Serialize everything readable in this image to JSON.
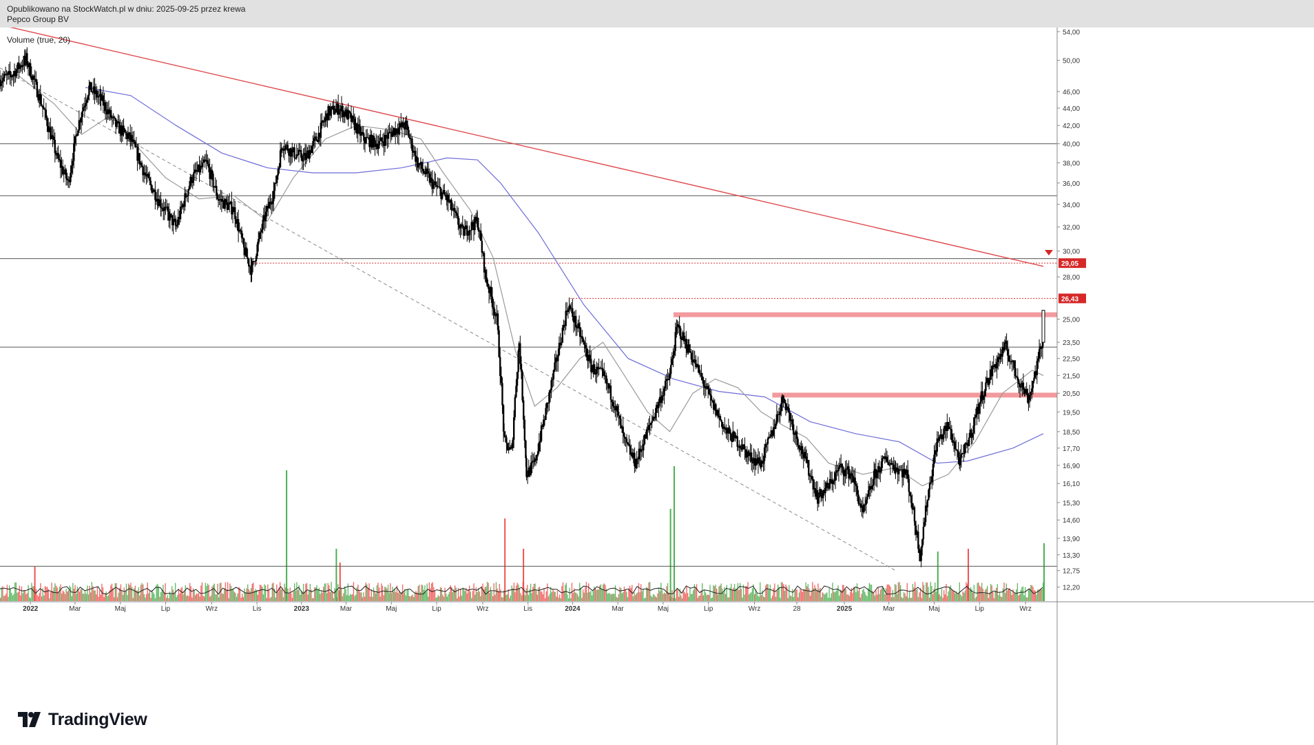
{
  "header": {
    "published": "Opublikowano na StockWatch.pl w dniu: 2025-09-25 przez krewa",
    "instrument": "Pepco Group BV"
  },
  "indicator_label": "Volume (true, 20)",
  "logo": {
    "text": "TradingView",
    "icon": "tradingview-logo-icon"
  },
  "colors": {
    "candle": "#000000",
    "trendline_red": "#e0484c",
    "zone": "#f29a9e",
    "ma_long": "#6b6bd9",
    "ma_short": "#9a9a9a",
    "vol_up": "#4caf50",
    "vol_down": "#ef5350",
    "price_label": "#d62828"
  },
  "chart_data": {
    "type": "line",
    "title": "",
    "x_ticks": [
      "2022",
      "Mar",
      "Maj",
      "Lip",
      "Wrz",
      "Lis",
      "2023",
      "Mar",
      "Maj",
      "Lip",
      "Wrz",
      "Lis",
      "2024",
      "Mar",
      "Maj",
      "Lip",
      "Wrz",
      "28",
      "2025",
      "Mar",
      "Maj",
      "Lip",
      "Wrz"
    ],
    "y_ticks": [
      "54,00",
      "50,00",
      "46,00",
      "44,00",
      "42,00",
      "40,00",
      "38,00",
      "36,00",
      "34,00",
      "32,00",
      "30,00",
      "28,00",
      "25,00",
      "23,50",
      "22,50",
      "21,50",
      "20,50",
      "19,50",
      "18,50",
      "17,70",
      "16,90",
      "16,10",
      "15,30",
      "14,60",
      "13,90",
      "13,30",
      "12,75",
      "12,20"
    ],
    "price_labels": [
      {
        "text": "29,05",
        "value": 29.05
      },
      {
        "text": "26,43",
        "value": 26.43
      }
    ],
    "y_scale": "log",
    "x_range": [
      "2021-11-20",
      "2025-09-25"
    ],
    "y_range": [
      11.75,
      55.0
    ],
    "horizontal_levels": [
      40.0,
      34.8,
      29.4,
      23.2,
      12.9
    ],
    "resistance_zones": [
      {
        "from": "2024-05-15",
        "to": "2025-09-25",
        "value": 25.3
      },
      {
        "from": "2024-09-25",
        "to": "2025-09-25",
        "value": 20.4
      }
    ],
    "downtrend_line": {
      "from": {
        "date": "2021-11-20",
        "value": 55.0
      },
      "to": {
        "date": "2025-09-25",
        "value": 28.8
      }
    },
    "dashed_trendline": {
      "from": {
        "date": "2021-11-20",
        "value": 49.0
      },
      "to": {
        "date": "2025-03-10",
        "value": 12.75
      }
    },
    "series": [
      {
        "kind": "close",
        "points": [
          [
            "2021-11-20",
            47.5
          ],
          [
            "2021-12-05",
            48.0
          ],
          [
            "2021-12-25",
            50.2
          ],
          [
            "2022-01-15",
            44.5
          ],
          [
            "2022-02-05",
            38.5
          ],
          [
            "2022-02-20",
            36.0
          ],
          [
            "2022-03-05",
            42.0
          ],
          [
            "2022-03-20",
            46.5
          ],
          [
            "2022-04-05",
            45.0
          ],
          [
            "2022-04-25",
            42.0
          ],
          [
            "2022-05-15",
            40.5
          ],
          [
            "2022-06-05",
            36.5
          ],
          [
            "2022-06-25",
            34.0
          ],
          [
            "2022-07-15",
            32.0
          ],
          [
            "2022-08-05",
            36.5
          ],
          [
            "2022-08-25",
            38.0
          ],
          [
            "2022-09-10",
            34.5
          ],
          [
            "2022-10-01",
            33.5
          ],
          [
            "2022-10-15",
            30.0
          ],
          [
            "2022-10-25",
            28.5
          ],
          [
            "2022-11-10",
            32.5
          ],
          [
            "2022-11-25",
            35.5
          ],
          [
            "2022-12-05",
            40.0
          ],
          [
            "2022-12-20",
            39.0
          ],
          [
            "2023-01-05",
            38.5
          ],
          [
            "2023-01-20",
            40.5
          ],
          [
            "2023-02-05",
            43.5
          ],
          [
            "2023-02-20",
            44.0
          ],
          [
            "2023-03-05",
            43.0
          ],
          [
            "2023-03-25",
            40.5
          ],
          [
            "2023-04-15",
            40.0
          ],
          [
            "2023-05-05",
            41.5
          ],
          [
            "2023-05-20",
            42.0
          ],
          [
            "2023-06-05",
            38.0
          ],
          [
            "2023-06-25",
            36.0
          ],
          [
            "2023-07-15",
            34.5
          ],
          [
            "2023-08-05",
            31.5
          ],
          [
            "2023-08-25",
            32.5
          ],
          [
            "2023-09-05",
            28.0
          ],
          [
            "2023-09-20",
            25.0
          ],
          [
            "2023-09-30",
            18.0
          ],
          [
            "2023-10-10",
            17.5
          ],
          [
            "2023-10-20",
            23.5
          ],
          [
            "2023-10-30",
            16.5
          ],
          [
            "2023-11-10",
            17.0
          ],
          [
            "2023-11-25",
            19.5
          ],
          [
            "2023-12-10",
            22.5
          ],
          [
            "2023-12-25",
            26.0
          ],
          [
            "2024-01-10",
            24.0
          ],
          [
            "2024-01-25",
            22.0
          ],
          [
            "2024-02-10",
            21.5
          ],
          [
            "2024-02-25",
            20.0
          ],
          [
            "2024-03-10",
            18.0
          ],
          [
            "2024-03-25",
            17.0
          ],
          [
            "2024-04-10",
            18.5
          ],
          [
            "2024-04-25",
            20.0
          ],
          [
            "2024-05-10",
            21.5
          ],
          [
            "2024-05-20",
            24.5
          ],
          [
            "2024-06-05",
            23.0
          ],
          [
            "2024-06-20",
            21.5
          ],
          [
            "2024-07-05",
            20.0
          ],
          [
            "2024-07-25",
            18.5
          ],
          [
            "2024-08-10",
            18.0
          ],
          [
            "2024-08-25",
            17.3
          ],
          [
            "2024-09-10",
            17.0
          ],
          [
            "2024-09-25",
            18.5
          ],
          [
            "2024-10-10",
            20.3
          ],
          [
            "2024-10-25",
            18.5
          ],
          [
            "2024-11-10",
            17.0
          ],
          [
            "2024-11-25",
            15.5
          ],
          [
            "2024-12-10",
            16.0
          ],
          [
            "2024-12-25",
            16.8
          ],
          [
            "2025-01-10",
            16.5
          ],
          [
            "2025-01-25",
            14.8
          ],
          [
            "2025-02-10",
            16.5
          ],
          [
            "2025-02-25",
            17.2
          ],
          [
            "2025-03-10",
            16.8
          ],
          [
            "2025-03-25",
            16.5
          ],
          [
            "2025-04-05",
            14.5
          ],
          [
            "2025-04-12",
            13.3
          ],
          [
            "2025-04-22",
            15.5
          ],
          [
            "2025-05-05",
            18.0
          ],
          [
            "2025-05-20",
            18.8
          ],
          [
            "2025-06-05",
            17.0
          ],
          [
            "2025-06-20",
            18.5
          ],
          [
            "2025-07-05",
            20.5
          ],
          [
            "2025-07-20",
            22.0
          ],
          [
            "2025-08-05",
            23.2
          ],
          [
            "2025-08-20",
            21.5
          ],
          [
            "2025-09-05",
            20.2
          ],
          [
            "2025-09-15",
            21.8
          ],
          [
            "2025-09-25",
            23.8
          ]
        ]
      },
      {
        "kind": "moving-average-long",
        "points": [
          [
            "2022-03-15",
            46.5
          ],
          [
            "2022-05-15",
            45.5
          ],
          [
            "2022-07-15",
            42.0
          ],
          [
            "2022-09-15",
            39.0
          ],
          [
            "2022-11-15",
            37.5
          ],
          [
            "2023-01-15",
            37.0
          ],
          [
            "2023-03-15",
            37.0
          ],
          [
            "2023-05-15",
            37.5
          ],
          [
            "2023-07-15",
            38.5
          ],
          [
            "2023-08-25",
            38.3
          ],
          [
            "2023-09-25",
            36.0
          ],
          [
            "2023-11-15",
            31.5
          ],
          [
            "2024-01-15",
            26.0
          ],
          [
            "2024-03-15",
            22.5
          ],
          [
            "2024-05-15",
            21.3
          ],
          [
            "2024-07-15",
            20.6
          ],
          [
            "2024-09-15",
            20.3
          ],
          [
            "2024-11-15",
            19.0
          ],
          [
            "2025-01-15",
            18.4
          ],
          [
            "2025-03-15",
            18.0
          ],
          [
            "2025-05-05",
            17.0
          ],
          [
            "2025-06-15",
            17.1
          ],
          [
            "2025-08-15",
            17.7
          ],
          [
            "2025-09-25",
            18.4
          ]
        ]
      },
      {
        "kind": "moving-average-short",
        "points": [
          [
            "2021-12-15",
            48.0
          ],
          [
            "2022-02-01",
            44.5
          ],
          [
            "2022-03-10",
            41.0
          ],
          [
            "2022-04-15",
            43.0
          ],
          [
            "2022-05-20",
            40.0
          ],
          [
            "2022-07-01",
            36.5
          ],
          [
            "2022-08-15",
            34.5
          ],
          [
            "2022-10-01",
            34.8
          ],
          [
            "2022-11-15",
            32.5
          ],
          [
            "2022-12-20",
            36.5
          ],
          [
            "2023-02-01",
            40.5
          ],
          [
            "2023-03-15",
            42.0
          ],
          [
            "2023-05-01",
            41.5
          ],
          [
            "2023-06-10",
            40.5
          ],
          [
            "2023-07-10",
            37.0
          ],
          [
            "2023-08-15",
            33.5
          ],
          [
            "2023-09-15",
            29.5
          ],
          [
            "2023-10-15",
            23.0
          ],
          [
            "2023-11-10",
            19.8
          ],
          [
            "2023-12-10",
            20.8
          ],
          [
            "2024-01-10",
            22.5
          ],
          [
            "2024-02-10",
            23.5
          ],
          [
            "2024-03-10",
            21.5
          ],
          [
            "2024-04-10",
            19.5
          ],
          [
            "2024-05-10",
            18.5
          ],
          [
            "2024-06-10",
            20.5
          ],
          [
            "2024-07-10",
            21.3
          ],
          [
            "2024-08-10",
            20.8
          ],
          [
            "2024-09-10",
            19.5
          ],
          [
            "2024-10-10",
            18.8
          ],
          [
            "2024-11-10",
            18.2
          ],
          [
            "2024-12-10",
            17.0
          ],
          [
            "2025-01-25",
            16.5
          ],
          [
            "2025-03-10",
            16.8
          ],
          [
            "2025-04-15",
            16.0
          ],
          [
            "2025-05-20",
            16.5
          ],
          [
            "2025-06-25",
            18.0
          ],
          [
            "2025-08-01",
            20.5
          ],
          [
            "2025-09-10",
            21.8
          ],
          [
            "2025-09-25",
            21.5
          ]
        ]
      }
    ],
    "volume": {
      "spikes": [
        {
          "date": "2022-01-05",
          "value": 0.25,
          "up": false
        },
        {
          "date": "2022-12-10",
          "value": 0.95,
          "up": true
        },
        {
          "date": "2023-02-15",
          "value": 0.38,
          "up": true
        },
        {
          "date": "2023-02-20",
          "value": 0.28,
          "up": false
        },
        {
          "date": "2023-09-30",
          "value": 0.6,
          "up": false
        },
        {
          "date": "2023-10-25",
          "value": 0.38,
          "up": false
        },
        {
          "date": "2024-05-15",
          "value": 0.98,
          "up": true
        },
        {
          "date": "2024-05-10",
          "value": 0.67,
          "up": true
        },
        {
          "date": "2025-09-25",
          "value": 0.42,
          "up": true
        },
        {
          "date": "2025-05-05",
          "value": 0.36,
          "up": true
        },
        {
          "date": "2025-06-15",
          "value": 0.38,
          "up": false
        }
      ]
    }
  }
}
